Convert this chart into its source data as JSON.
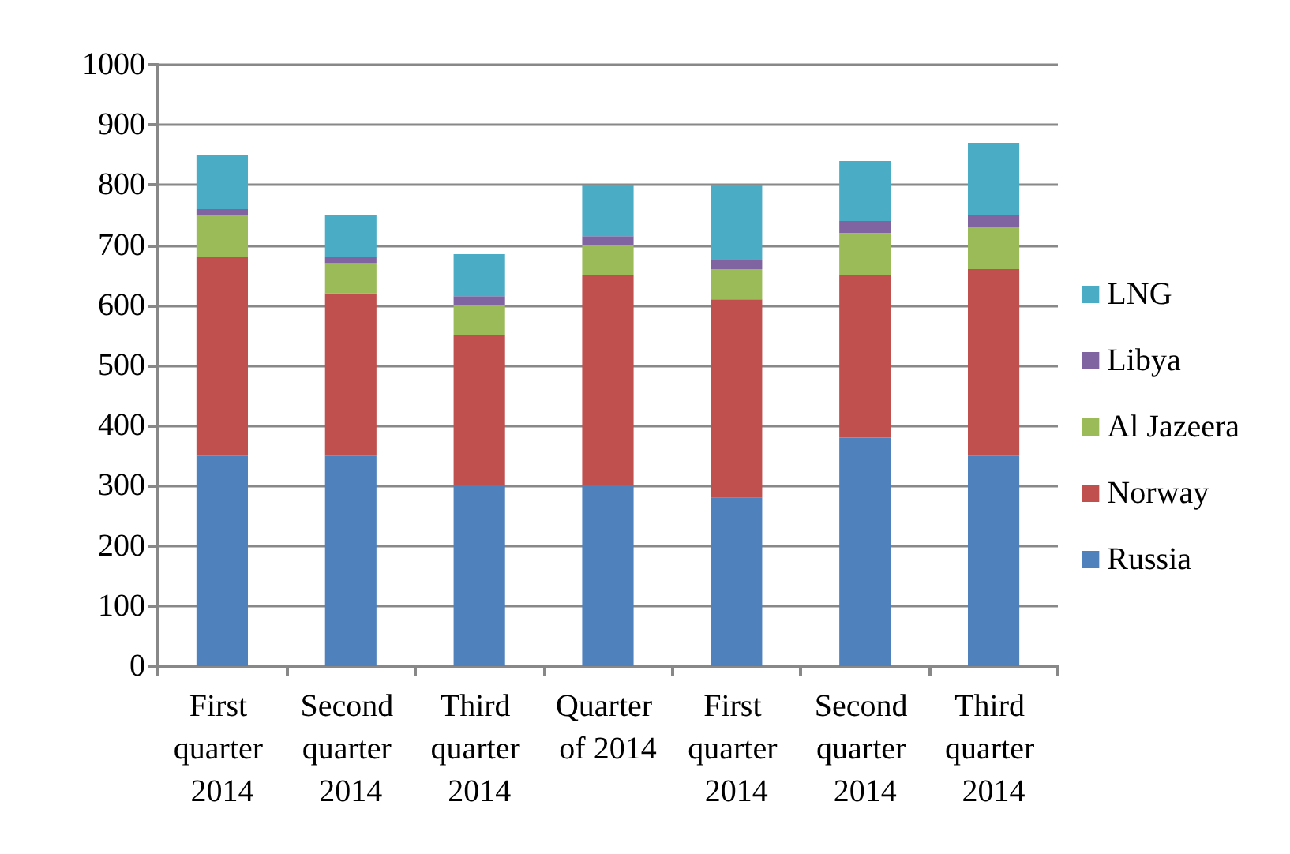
{
  "chart_data": {
    "type": "bar",
    "stacked": true,
    "categories": [
      "First quarter 2014",
      "Second quarter 2014",
      "Third quarter 2014",
      "Quarter of 2014",
      "First quarter 2014",
      "Second quarter 2014",
      "Third quarter 2014"
    ],
    "series": [
      {
        "name": "Russia",
        "color": "#4f81bd",
        "values": [
          350,
          350,
          300,
          300,
          280,
          380,
          350
        ]
      },
      {
        "name": "Norway",
        "color": "#c0504d",
        "values": [
          330,
          270,
          250,
          350,
          330,
          270,
          310
        ]
      },
      {
        "name": "Al Jazeera",
        "color": "#9bbb59",
        "values": [
          70,
          50,
          50,
          50,
          50,
          70,
          70
        ]
      },
      {
        "name": "Libya",
        "color": "#8064a2",
        "values": [
          10,
          10,
          15,
          15,
          15,
          20,
          20
        ]
      },
      {
        "name": "LNG",
        "color": "#4bacc6",
        "values": [
          90,
          70,
          70,
          85,
          125,
          100,
          120
        ]
      }
    ],
    "ylim": [
      0,
      1000
    ],
    "yticks": [
      0,
      100,
      200,
      300,
      400,
      500,
      600,
      700,
      800,
      900,
      1000
    ],
    "grid": "y",
    "legend": "right"
  }
}
